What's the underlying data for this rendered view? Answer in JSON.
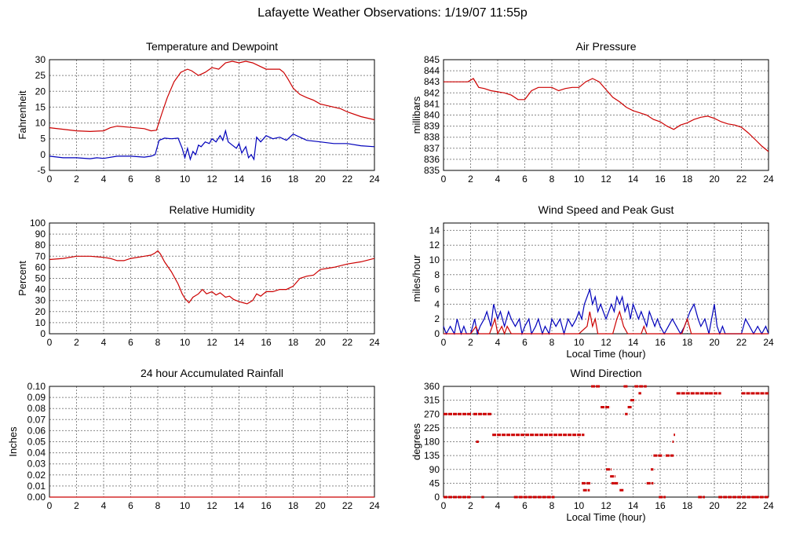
{
  "page": {
    "title": "Lafayette Weather Observations: 1/19/07 11:55p"
  },
  "colors": {
    "primary_series": "#cc0000",
    "secondary_series": "#0000bb",
    "grid": "#888888"
  },
  "chart_data": [
    {
      "id": "temp",
      "type": "line",
      "title": "Temperature and Dewpoint",
      "xlabel": "",
      "ylabel": "Fahrenheit",
      "xlim": [
        0,
        24
      ],
      "ylim": [
        -5,
        30
      ],
      "xticks": [
        0,
        2,
        4,
        6,
        8,
        10,
        12,
        14,
        16,
        18,
        20,
        22,
        24
      ],
      "yticks": [
        -5,
        0,
        5,
        10,
        15,
        20,
        25,
        30
      ],
      "grid": true,
      "series": [
        {
          "color": "#cc0000",
          "x": [
            0,
            1,
            2,
            3,
            4,
            4.5,
            5,
            6,
            7,
            7.5,
            7.9,
            8.3,
            8.7,
            9.2,
            9.7,
            10.2,
            10.5,
            11,
            11.5,
            12,
            12.5,
            13,
            13.5,
            14,
            14.5,
            15,
            15.5,
            16,
            16.5,
            17,
            17.3,
            17.6,
            18,
            18.5,
            19,
            19.5,
            20,
            20.5,
            21,
            21.5,
            22,
            23,
            24
          ],
          "y": [
            8.5,
            8,
            7.5,
            7.3,
            7.5,
            8.5,
            9,
            8.6,
            8.2,
            7.5,
            7.7,
            13,
            18,
            23,
            26,
            27,
            26.5,
            25,
            26,
            27.5,
            27,
            29,
            29.5,
            29,
            29.5,
            29,
            28,
            27,
            27,
            27,
            26,
            24,
            21,
            19,
            18,
            17.2,
            16,
            15.5,
            15,
            14.5,
            13.5,
            12,
            11
          ]
        },
        {
          "color": "#0000bb",
          "x": [
            0,
            1,
            2,
            3,
            3.5,
            4,
            5,
            6,
            7,
            7.5,
            7.8,
            8.1,
            8.5,
            9,
            9.5,
            9.8,
            10,
            10.2,
            10.4,
            10.6,
            10.8,
            11,
            11.2,
            11.5,
            11.8,
            12,
            12.3,
            12.6,
            12.8,
            13,
            13.2,
            13.5,
            13.8,
            14,
            14.2,
            14.5,
            14.7,
            14.9,
            15.1,
            15.3,
            15.6,
            16,
            16.5,
            17,
            17.5,
            18,
            19,
            20,
            21,
            22,
            23,
            24
          ],
          "y": [
            -0.5,
            -1,
            -1,
            -1.3,
            -1,
            -1.2,
            -0.5,
            -0.5,
            -0.8,
            -0.5,
            0,
            4.5,
            5.2,
            5,
            5.2,
            2,
            -1,
            2,
            -1.5,
            1,
            0,
            3,
            2.5,
            4,
            3.5,
            5,
            4,
            6,
            4.5,
            7.5,
            4,
            3,
            2,
            3.5,
            0.5,
            2.5,
            -1,
            0,
            -1.5,
            5.5,
            4,
            6,
            5,
            5.5,
            4.5,
            6.5,
            4.5,
            4,
            3.5,
            3.5,
            2.8,
            2.5
          ]
        }
      ]
    },
    {
      "id": "pressure",
      "type": "line",
      "title": "Air Pressure",
      "xlabel": "",
      "ylabel": "millibars",
      "xlim": [
        0,
        24
      ],
      "ylim": [
        835,
        845
      ],
      "xticks": [
        0,
        2,
        4,
        6,
        8,
        10,
        12,
        14,
        16,
        18,
        20,
        22,
        24
      ],
      "yticks": [
        835,
        836,
        837,
        838,
        839,
        840,
        841,
        842,
        843,
        844,
        845
      ],
      "grid": true,
      "series": [
        {
          "color": "#cc0000",
          "x": [
            0,
            1,
            1.8,
            2.2,
            2.6,
            3,
            3.5,
            4,
            4.5,
            5,
            5.5,
            6,
            6.5,
            7,
            7.5,
            8,
            8.5,
            9,
            9.5,
            10,
            10.5,
            11,
            11.5,
            12,
            12.5,
            13,
            13.5,
            14,
            14.5,
            15,
            15.5,
            16,
            16.5,
            17,
            17.5,
            18,
            18.5,
            19,
            19.5,
            20,
            20.5,
            21,
            21.5,
            22,
            22.5,
            23,
            23.5,
            24
          ],
          "y": [
            843,
            843,
            843,
            843.3,
            842.5,
            842.4,
            842.2,
            842.1,
            842,
            841.8,
            841.4,
            841.4,
            842.2,
            842.5,
            842.5,
            842.5,
            842.2,
            842.4,
            842.5,
            842.5,
            843,
            843.3,
            843,
            842.3,
            841.6,
            841.2,
            840.7,
            840.4,
            840.2,
            840,
            839.6,
            839.4,
            839,
            838.7,
            839.1,
            839.3,
            839.6,
            839.8,
            839.9,
            839.7,
            839.4,
            839.2,
            839.1,
            838.9,
            838.4,
            837.8,
            837.2,
            836.7
          ]
        }
      ]
    },
    {
      "id": "humidity",
      "type": "line",
      "title": "Relative Humidity",
      "xlabel": "",
      "ylabel": "Percent",
      "xlim": [
        0,
        24
      ],
      "ylim": [
        0,
        100
      ],
      "xticks": [
        0,
        2,
        4,
        6,
        8,
        10,
        12,
        14,
        16,
        18,
        20,
        22,
        24
      ],
      "yticks": [
        0,
        10,
        20,
        30,
        40,
        50,
        60,
        70,
        80,
        90,
        100
      ],
      "grid": true,
      "series": [
        {
          "color": "#cc0000",
          "x": [
            0,
            1,
            2,
            3,
            4,
            4.5,
            5,
            5.5,
            6,
            7,
            7.5,
            7.8,
            8,
            8.2,
            8.5,
            9,
            9.5,
            9.8,
            10,
            10.3,
            10.6,
            11,
            11.3,
            11.6,
            12,
            12.3,
            12.6,
            13,
            13.3,
            13.6,
            14,
            14.3,
            14.6,
            15,
            15.3,
            15.6,
            16,
            16.5,
            17,
            17.5,
            18,
            18.5,
            19,
            19.5,
            20,
            21,
            22,
            23,
            24
          ],
          "y": [
            67,
            68,
            70,
            70,
            69,
            68,
            66,
            66,
            68,
            70,
            71,
            73,
            75,
            72,
            65,
            56,
            45,
            36,
            32,
            28,
            33,
            36,
            40,
            36,
            38,
            35,
            37,
            33,
            34,
            31,
            29,
            28,
            27,
            30,
            36,
            34,
            38,
            38,
            40,
            40,
            43,
            50,
            52,
            53,
            58,
            60,
            63,
            65,
            68
          ]
        }
      ]
    },
    {
      "id": "wind",
      "type": "line",
      "title": "Wind Speed and Peak Gust",
      "xlabel": "Local Time (hour)",
      "ylabel": "miles/hour",
      "xlim": [
        0,
        24
      ],
      "ylim": [
        0,
        15
      ],
      "xticks": [
        0,
        2,
        4,
        6,
        8,
        10,
        12,
        14,
        16,
        18,
        20,
        22,
        24
      ],
      "yticks": [
        0,
        2,
        4,
        6,
        8,
        10,
        12,
        14
      ],
      "grid": true,
      "series": [
        {
          "color": "#0000bb",
          "x": [
            0,
            0.2,
            0.5,
            0.8,
            1,
            1.3,
            1.5,
            1.7,
            2,
            2.3,
            2.5,
            2.7,
            3,
            3.2,
            3.5,
            3.7,
            4,
            4.2,
            4.5,
            4.8,
            5,
            5.3,
            5.6,
            5.8,
            6,
            6.3,
            6.5,
            6.8,
            7,
            7.3,
            7.5,
            7.8,
            8,
            8.3,
            8.6,
            8.9,
            9.2,
            9.5,
            9.8,
            10,
            10.2,
            10.4,
            10.6,
            10.8,
            11,
            11.2,
            11.4,
            11.6,
            11.8,
            12,
            12.2,
            12.4,
            12.6,
            12.8,
            13,
            13.2,
            13.4,
            13.6,
            13.8,
            14,
            14.2,
            14.4,
            14.6,
            14.8,
            15,
            15.2,
            15.4,
            15.6,
            15.8,
            16,
            16.3,
            16.6,
            16.9,
            17.2,
            17.5,
            17.8,
            18,
            18.2,
            18.5,
            18.8,
            19,
            19.3,
            19.6,
            19.8,
            20,
            20.2,
            20.4,
            20.6,
            20.8,
            21,
            21.5,
            22,
            22.3,
            22.6,
            22.9,
            23.2,
            23.5,
            23.8,
            24
          ],
          "y": [
            1,
            0,
            1,
            0,
            2,
            0,
            1,
            0,
            0,
            2,
            0,
            1,
            2,
            3,
            1,
            4,
            2,
            3,
            1,
            3,
            2,
            1,
            2,
            0,
            1,
            2,
            0,
            1,
            2,
            0,
            1,
            0,
            2,
            1,
            2,
            0,
            2,
            1,
            2,
            3,
            2,
            4,
            5,
            6,
            4,
            5,
            3,
            4,
            3,
            2,
            3,
            4,
            3,
            5,
            4,
            5,
            3,
            4,
            2,
            4,
            3,
            2,
            3,
            2,
            1,
            3,
            2,
            1,
            2,
            1,
            0,
            1,
            2,
            1,
            0,
            1,
            2,
            3,
            4,
            2,
            1,
            2,
            0,
            2,
            4,
            1,
            0,
            1,
            0,
            0,
            0,
            0,
            2,
            1,
            0,
            1,
            0,
            1,
            0
          ]
        },
        {
          "color": "#cc0000",
          "x": [
            0,
            2,
            2.4,
            2.6,
            2.8,
            3.4,
            3.6,
            3.8,
            4,
            4.3,
            4.5,
            4.7,
            5,
            10,
            10.6,
            10.8,
            11,
            11.2,
            11.4,
            12.5,
            12.8,
            13,
            13.3,
            13.6,
            14.6,
            14.8,
            15,
            15.3,
            17.6,
            17.8,
            18,
            18.3,
            24
          ],
          "y": [
            0,
            0,
            1,
            0,
            0,
            0,
            1,
            2,
            0,
            1,
            0,
            1,
            0,
            0,
            1,
            3,
            1,
            2,
            0,
            0,
            2,
            3,
            1,
            0,
            0,
            1,
            0,
            0,
            0,
            1,
            2,
            0,
            0
          ]
        }
      ]
    },
    {
      "id": "rain",
      "type": "line",
      "title": "24 hour Accumulated Rainfall",
      "xlabel": "",
      "ylabel": "Inches",
      "xlim": [
        0,
        24
      ],
      "ylim": [
        0,
        0.1
      ],
      "xticks": [
        0,
        2,
        4,
        6,
        8,
        10,
        12,
        14,
        16,
        18,
        20,
        22,
        24
      ],
      "yticks": [
        0.0,
        0.01,
        0.02,
        0.03,
        0.04,
        0.05,
        0.06,
        0.07,
        0.08,
        0.09,
        0.1
      ],
      "ytick_labels": [
        "0.00",
        "0.01",
        "0.02",
        "0.03",
        "0.04",
        "0.05",
        "0.06",
        "0.07",
        "0.08",
        "0.09",
        "0.10"
      ],
      "grid": true,
      "series": [
        {
          "color": "#cc0000",
          "x": [
            0,
            24
          ],
          "y": [
            0,
            0
          ]
        }
      ]
    },
    {
      "id": "direction",
      "type": "scatter",
      "title": "Wind Direction",
      "xlabel": "Local Time (hour)",
      "ylabel": "degrees",
      "xlim": [
        0,
        24
      ],
      "ylim": [
        0,
        360
      ],
      "xticks": [
        0,
        2,
        4,
        6,
        8,
        10,
        12,
        14,
        16,
        18,
        20,
        22,
        24
      ],
      "yticks": [
        0,
        45,
        90,
        135,
        180,
        225,
        270,
        315,
        360
      ],
      "grid": true,
      "segments": [
        {
          "x0": 0,
          "x1": 2.1,
          "y": 270
        },
        {
          "x0": 0,
          "x1": 2.0,
          "y": 0
        },
        {
          "x0": 2.2,
          "x1": 3.6,
          "y": 270
        },
        {
          "x0": 2.4,
          "x1": 2.6,
          "y": 180
        },
        {
          "x0": 2.8,
          "x1": 3.0,
          "y": 0
        },
        {
          "x0": 3.6,
          "x1": 10.4,
          "y": 202.5
        },
        {
          "x0": 5.2,
          "x1": 8.2,
          "y": 0
        },
        {
          "x0": 10.2,
          "x1": 10.9,
          "y": 45
        },
        {
          "x0": 10.3,
          "x1": 10.8,
          "y": 22.5
        },
        {
          "x0": 10.9,
          "x1": 11.6,
          "y": 360
        },
        {
          "x0": 11.6,
          "x1": 12.3,
          "y": 292.5
        },
        {
          "x0": 12.0,
          "x1": 12.4,
          "y": 90
        },
        {
          "x0": 12.3,
          "x1": 12.7,
          "y": 67.5
        },
        {
          "x0": 12.4,
          "x1": 12.6,
          "y": 45
        },
        {
          "x0": 12.6,
          "x1": 12.9,
          "y": 45
        },
        {
          "x0": 13.0,
          "x1": 13.3,
          "y": 22.5
        },
        {
          "x0": 13.3,
          "x1": 13.6,
          "y": 360
        },
        {
          "x0": 13.4,
          "x1": 13.6,
          "y": 270
        },
        {
          "x0": 13.6,
          "x1": 13.9,
          "y": 292.5
        },
        {
          "x0": 13.8,
          "x1": 14.1,
          "y": 315
        },
        {
          "x0": 14.1,
          "x1": 15.0,
          "y": 360
        },
        {
          "x0": 14.4,
          "x1": 14.6,
          "y": 337.5
        },
        {
          "x0": 15.0,
          "x1": 15.5,
          "y": 45
        },
        {
          "x0": 15.3,
          "x1": 15.5,
          "y": 90
        },
        {
          "x0": 15.5,
          "x1": 16.2,
          "y": 135
        },
        {
          "x0": 15.9,
          "x1": 16.4,
          "y": 0
        },
        {
          "x0": 16.4,
          "x1": 17.0,
          "y": 135
        },
        {
          "x0": 16.9,
          "x1": 17.0,
          "y": 180
        },
        {
          "x0": 17.0,
          "x1": 17.1,
          "y": 202.5
        },
        {
          "x0": 17.2,
          "x1": 19.6,
          "y": 337.5
        },
        {
          "x0": 18.8,
          "x1": 19.3,
          "y": 0
        },
        {
          "x0": 19.6,
          "x1": 20.5,
          "y": 337.5
        },
        {
          "x0": 20.3,
          "x1": 23.0,
          "y": 0
        },
        {
          "x0": 22.0,
          "x1": 24.0,
          "y": 337.5
        },
        {
          "x0": 23.0,
          "x1": 24.0,
          "y": 0
        }
      ]
    }
  ]
}
